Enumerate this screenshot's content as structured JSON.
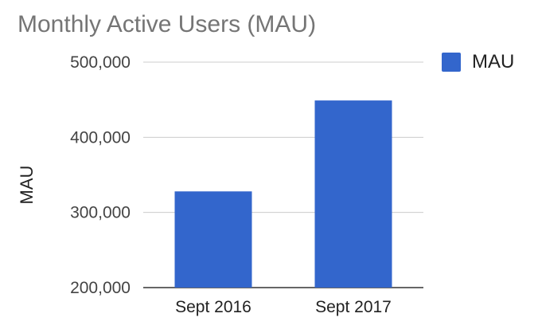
{
  "chart_data": {
    "type": "bar",
    "title": "Monthly Active Users (MAU)",
    "xlabel": "",
    "ylabel": "MAU",
    "categories": [
      "Sept 2016",
      "Sept 2017"
    ],
    "series": [
      {
        "name": "MAU",
        "values": [
          328000,
          449000
        ],
        "color": "#3366cc"
      }
    ],
    "ylim": [
      200000,
      500000
    ],
    "yticks": [
      200000,
      300000,
      400000,
      500000
    ],
    "ytick_labels": [
      "200,000",
      "300,000",
      "400,000",
      "500,000"
    ],
    "grid": true,
    "legend_position": "top-right"
  }
}
